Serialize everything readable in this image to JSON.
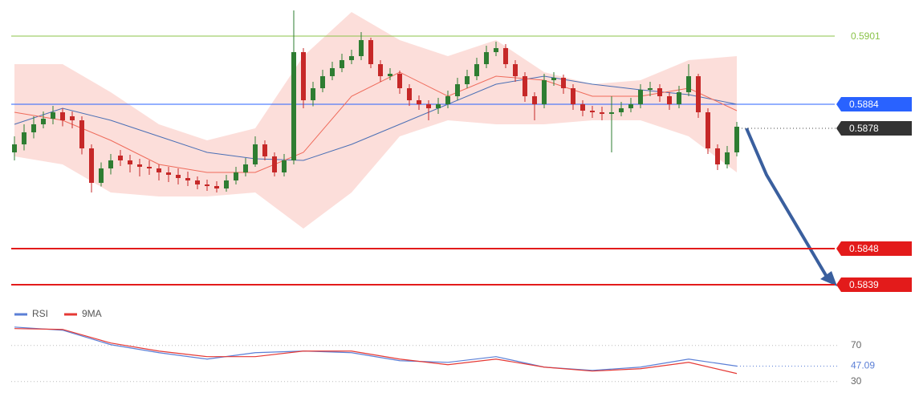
{
  "chart_data": [
    {
      "type": "candlestick",
      "ylim": [
        0.5835,
        0.591
      ],
      "open": [
        0.5872,
        0.5874,
        0.5877,
        0.5879,
        0.58804,
        0.5882,
        0.5881,
        0.588,
        0.5873,
        0.58644,
        0.5868,
        0.58712,
        0.587,
        0.5869,
        0.58684,
        0.5868,
        0.5867,
        0.58664,
        0.58656,
        0.5865,
        0.5864,
        0.58636,
        0.5863,
        0.5865,
        0.5867,
        0.5869,
        0.5874,
        0.5871,
        0.5867,
        0.587,
        0.5897,
        0.5885,
        0.5888,
        0.5891,
        0.5893,
        0.5895,
        0.5896,
        0.59,
        0.5894,
        0.5891,
        0.58916,
        0.5888,
        0.5885,
        0.5884,
        0.5883,
        0.5884,
        0.5886,
        0.5889,
        0.5891,
        0.5894,
        0.5897,
        0.5898,
        0.5894,
        0.5891,
        0.5886,
        0.5884,
        0.589,
        0.58906,
        0.5888,
        0.5884,
        0.58824,
        0.5882,
        0.58816,
        0.5882,
        0.5883,
        0.5884,
        0.58876,
        0.5888,
        0.5886,
        0.5884,
        0.5887,
        0.5891,
        0.5882,
        0.5873,
        0.5869,
        0.5872
      ],
      "high": [
        0.5876,
        0.5879,
        0.5881,
        0.58822,
        0.58836,
        0.5883,
        0.58822,
        0.5881,
        0.5874,
        0.58695,
        0.58716,
        0.58726,
        0.58714,
        0.58704,
        0.587,
        0.5869,
        0.58684,
        0.5868,
        0.58672,
        0.5866,
        0.58652,
        0.58648,
        0.58664,
        0.58684,
        0.58706,
        0.5876,
        0.5875,
        0.5872,
        0.58716,
        0.59074,
        0.5898,
        0.58896,
        0.58926,
        0.58946,
        0.58966,
        0.58976,
        0.5902,
        0.59006,
        0.5895,
        0.5893,
        0.58924,
        0.5889,
        0.58862,
        0.5885,
        0.58856,
        0.58874,
        0.58906,
        0.58926,
        0.58956,
        0.58986,
        0.58996,
        0.5899,
        0.5895,
        0.5892,
        0.5887,
        0.58916,
        0.5892,
        0.58914,
        0.5889,
        0.5885,
        0.58836,
        0.58834,
        0.5886,
        0.58846,
        0.58856,
        0.5889,
        0.58896,
        0.5889,
        0.5887,
        0.58886,
        0.5894,
        0.58916,
        0.5883,
        0.5874,
        0.58736,
        0.58796
      ],
      "low": [
        0.587,
        0.58725,
        0.58755,
        0.5878,
        0.5879,
        0.58785,
        0.5878,
        0.58715,
        0.5862,
        0.58635,
        0.58665,
        0.58686,
        0.5867,
        0.5866,
        0.58664,
        0.5865,
        0.58646,
        0.5864,
        0.58636,
        0.58628,
        0.58624,
        0.5862,
        0.58622,
        0.5864,
        0.5866,
        0.58684,
        0.587,
        0.5866,
        0.5866,
        0.5869,
        0.5883,
        0.58835,
        0.5887,
        0.589,
        0.5892,
        0.5894,
        0.5895,
        0.5893,
        0.58896,
        0.589,
        0.58866,
        0.58836,
        0.58826,
        0.588,
        0.58816,
        0.5883,
        0.5885,
        0.5888,
        0.589,
        0.5893,
        0.5896,
        0.5893,
        0.58896,
        0.58846,
        0.588,
        0.5883,
        0.58886,
        0.58866,
        0.58826,
        0.5881,
        0.58806,
        0.588,
        0.5872,
        0.5881,
        0.5882,
        0.5883,
        0.5886,
        0.58846,
        0.58826,
        0.5883,
        0.5886,
        0.58806,
        0.58716,
        0.58676,
        0.5868,
        0.5871
      ],
      "close": [
        0.5874,
        0.5877,
        0.5879,
        0.58804,
        0.5882,
        0.588,
        0.588,
        0.5873,
        0.58644,
        0.5868,
        0.587,
        0.587,
        0.5869,
        0.58684,
        0.5868,
        0.5867,
        0.58664,
        0.58656,
        0.5865,
        0.5864,
        0.58636,
        0.5863,
        0.5865,
        0.5867,
        0.5869,
        0.5874,
        0.5871,
        0.5867,
        0.587,
        0.5897,
        0.5885,
        0.5888,
        0.5891,
        0.5893,
        0.5895,
        0.5896,
        0.59,
        0.5894,
        0.5891,
        0.58916,
        0.5888,
        0.5885,
        0.5884,
        0.5883,
        0.5884,
        0.5886,
        0.5889,
        0.5891,
        0.5894,
        0.5897,
        0.5898,
        0.5894,
        0.5891,
        0.5886,
        0.5884,
        0.589,
        0.58906,
        0.5888,
        0.5884,
        0.58824,
        0.5882,
        0.58816,
        0.5882,
        0.5883,
        0.5884,
        0.58876,
        0.5888,
        0.5886,
        0.5884,
        0.5887,
        0.5891,
        0.5882,
        0.5873,
        0.5869,
        0.5872,
        0.58784
      ],
      "up_color": "#2e7d32",
      "down_color": "#c62828",
      "overlay_x": [
        0,
        5,
        10,
        15,
        20,
        25,
        30,
        35,
        40,
        45,
        50,
        55,
        60,
        65,
        70,
        75
      ],
      "bb_upper": [
        0.5894,
        0.5894,
        0.5887,
        0.5879,
        0.5875,
        0.5878,
        0.5896,
        0.5907,
        0.59,
        0.5896,
        0.59,
        0.5892,
        0.5889,
        0.589,
        0.5895,
        0.5896
      ],
      "bb_lower": [
        0.5871,
        0.5869,
        0.5862,
        0.5861,
        0.5861,
        0.5862,
        0.5853,
        0.5862,
        0.5876,
        0.588,
        0.5879,
        0.5879,
        0.588,
        0.588,
        0.5876,
        0.5867
      ],
      "bb_color": "#fbd3cd",
      "ma_slow": [
        0.5879,
        0.5883,
        0.588,
        0.5876,
        0.5872,
        0.58704,
        0.587,
        0.5874,
        0.5879,
        0.5884,
        0.5889,
        0.5891,
        0.5889,
        0.58876,
        0.58864,
        0.5884
      ],
      "ma_slow_color": "#4a6fb5",
      "ma_fast": [
        0.5882,
        0.588,
        0.5875,
        0.5869,
        0.5867,
        0.5867,
        0.5872,
        0.5886,
        0.5892,
        0.5886,
        0.5891,
        0.589,
        0.5886,
        0.5886,
        0.5888,
        0.58824
      ],
      "ma_fast_color": "#ef6b5b",
      "levels": [
        {
          "value": 0.5901,
          "color": "#8bc34a",
          "style": "text"
        },
        {
          "value": 0.5884,
          "color": "#2962ff",
          "style": "box"
        },
        {
          "value": 0.5848,
          "color": "#e31b1b",
          "style": "box"
        },
        {
          "value": 0.5839,
          "color": "#e31b1b",
          "style": "box"
        }
      ],
      "last_price": 0.5878,
      "last_price_color": "#333333"
    },
    {
      "type": "line",
      "x": [
        0,
        5,
        10,
        15,
        20,
        25,
        30,
        35,
        40,
        45,
        50,
        55,
        60,
        65,
        70,
        75
      ],
      "ylim": [
        20,
        92
      ],
      "yticks": [
        30,
        70
      ],
      "series": [
        {
          "name": "RSI",
          "color": "#5b7fd6",
          "values": [
            90.4,
            86.9,
            70.9,
            62,
            54.9,
            62,
            63.8,
            62,
            53.1,
            51.3,
            57.6,
            46,
            42.4,
            46,
            54.9,
            47.09
          ]
        },
        {
          "name": "9MA",
          "color": "#e53935",
          "values": [
            88.7,
            87.8,
            72.7,
            63.8,
            57.6,
            57.6,
            63.8,
            63.8,
            54.9,
            48.7,
            54.9,
            46,
            41.6,
            44.2,
            51.3,
            38.9
          ]
        }
      ]
    }
  ]
}
